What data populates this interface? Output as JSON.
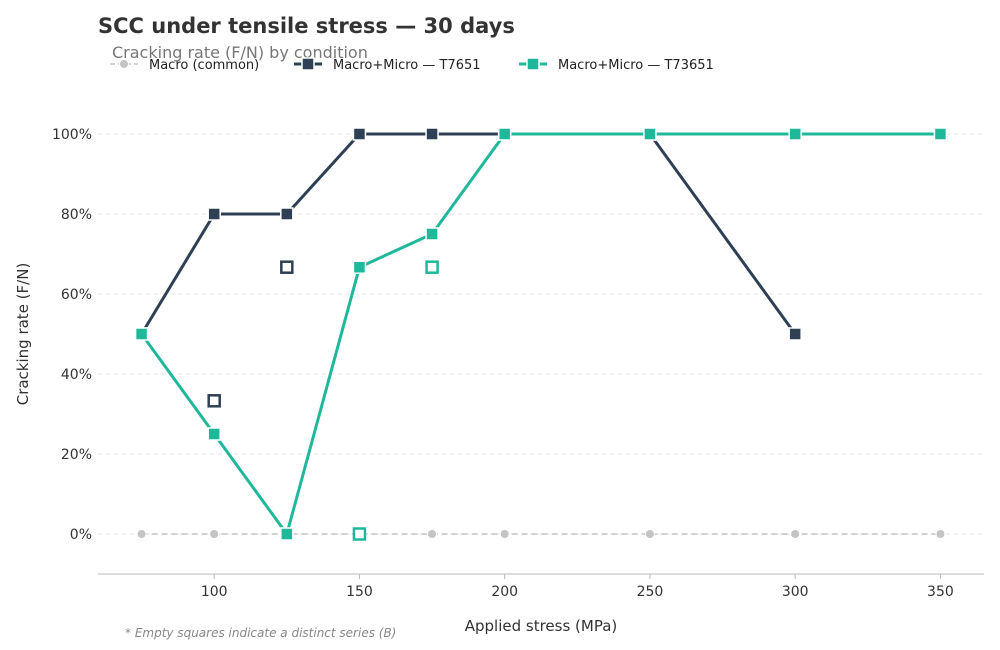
{
  "chart_data": {
    "type": "line",
    "title": "SCC under tensile stress — 30 days",
    "subtitle": "Cracking rate (F/N) by condition",
    "xlabel": "Applied stress (MPa)",
    "ylabel": "Cracking rate (F/N)",
    "xlim": [
      60,
      365
    ],
    "ylim": [
      -0.1,
      1.1
    ],
    "x_ticks": [
      100,
      150,
      200,
      250,
      300,
      350
    ],
    "y_ticks": [
      0,
      0.2,
      0.4,
      0.6,
      0.8,
      1.0
    ],
    "y_tick_labels": [
      "0%",
      "20%",
      "40%",
      "60%",
      "80%",
      "100%"
    ],
    "grid": "horizontal dashed",
    "legend_position": "top-left",
    "series": [
      {
        "name": "Macro (common)",
        "color": "#c4c4c4",
        "marker": "circle",
        "line_style": "dashed",
        "points": [
          [
            75,
            0
          ],
          [
            100,
            0
          ],
          [
            125,
            0
          ],
          [
            150,
            0
          ],
          [
            175,
            0
          ],
          [
            200,
            0
          ],
          [
            250,
            0
          ],
          [
            300,
            0
          ],
          [
            350,
            0
          ]
        ]
      },
      {
        "name": "Macro+Micro — T7651",
        "color": "#2f4054",
        "marker": "square",
        "line_style": "solid",
        "points": [
          [
            75,
            0.5
          ],
          [
            100,
            0.8
          ],
          [
            125,
            0.8
          ],
          [
            150,
            1.0
          ],
          [
            175,
            1.0
          ],
          [
            200,
            1.0
          ],
          [
            250,
            1.0
          ],
          [
            300,
            0.5
          ]
        ]
      },
      {
        "name": "Macro+Micro — T73651",
        "color": "#1fb89a",
        "marker": "square",
        "line_style": "solid",
        "points": [
          [
            75,
            0.5
          ],
          [
            100,
            0.25
          ],
          [
            125,
            0
          ],
          [
            150,
            0.667
          ],
          [
            175,
            0.75
          ],
          [
            200,
            1.0
          ],
          [
            250,
            1.0
          ],
          [
            300,
            1.0
          ],
          [
            350,
            1.0
          ]
        ]
      }
    ],
    "series_b_points": [
      {
        "of": "Macro+Micro — T7651",
        "color": "#2f4054",
        "marker": "empty-square",
        "points": [
          [
            100,
            0.333
          ],
          [
            125,
            0.667
          ]
        ]
      },
      {
        "of": "Macro+Micro — T73651",
        "color": "#1fb89a",
        "marker": "empty-square",
        "points": [
          [
            150,
            0
          ],
          [
            175,
            0.667
          ]
        ]
      }
    ],
    "footnote": "* Empty squares indicate a distinct series (B)"
  }
}
